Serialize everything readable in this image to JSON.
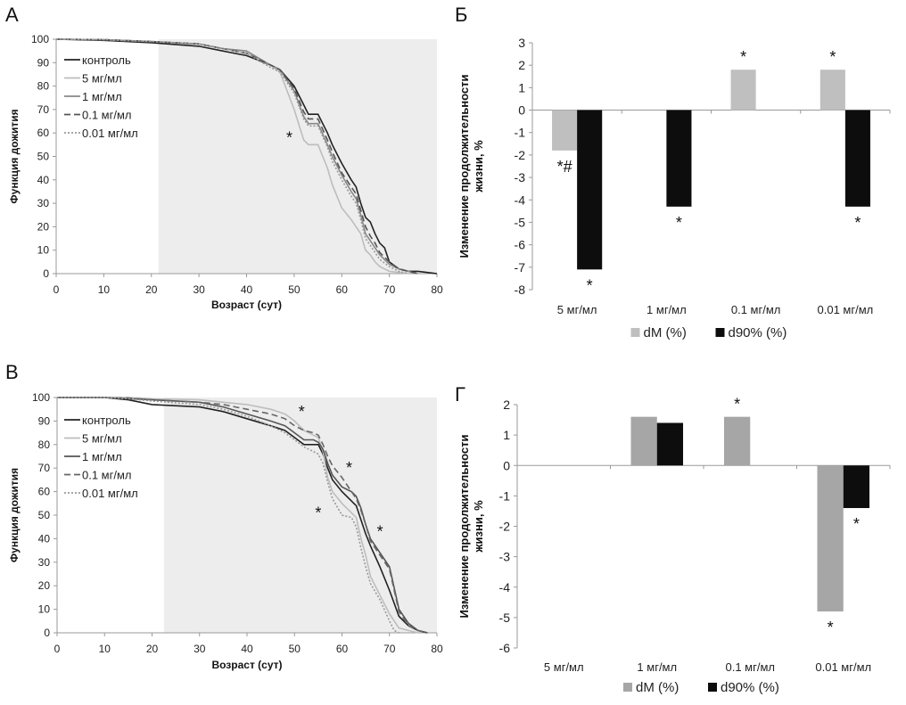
{
  "chart_data": [
    {
      "panel": "A",
      "type": "line",
      "xlabel": "Возраст (сут)",
      "ylabel": "Функция дожития",
      "xlim": [
        0,
        80
      ],
      "ylim": [
        0,
        100
      ],
      "xticks": [
        0,
        10,
        20,
        30,
        40,
        50,
        60,
        70,
        80
      ],
      "yticks": [
        0,
        10,
        20,
        30,
        40,
        50,
        60,
        70,
        80,
        90,
        100
      ],
      "shaded_from_x": 21.5,
      "legend_position": "top-left",
      "annotations": [
        {
          "text": "*",
          "x": 49,
          "y": 58,
          "color": "#aaaaaa"
        }
      ],
      "series": [
        {
          "name": "контроль",
          "style": "solid",
          "color": "#222222",
          "x": [
            0,
            10,
            20,
            30,
            35,
            40,
            45,
            47,
            50,
            52,
            53,
            55,
            57,
            58,
            60,
            62,
            63,
            64,
            65,
            66,
            67,
            68,
            69,
            70,
            72,
            74,
            76,
            78,
            80
          ],
          "y": [
            100,
            99.5,
            98.5,
            97,
            95,
            93,
            89,
            87,
            80,
            72,
            68,
            68,
            60,
            55,
            47,
            40,
            37,
            30,
            24,
            22,
            17,
            13,
            11,
            5,
            2,
            1,
            1,
            0.5,
            0
          ]
        },
        {
          "name": "5 мг/мл",
          "style": "solid",
          "color": "#bdbdbd",
          "x": [
            0,
            10,
            20,
            30,
            35,
            40,
            45,
            47,
            50,
            52,
            53,
            55,
            57,
            58,
            60,
            62,
            63,
            64,
            65,
            66,
            67,
            68,
            70,
            72,
            74
          ],
          "y": [
            100,
            99.8,
            99,
            98,
            96,
            94,
            89,
            86,
            70,
            57,
            55,
            55,
            45,
            38,
            28,
            23,
            20,
            17,
            10,
            8,
            5,
            3,
            1,
            0.5,
            0
          ]
        },
        {
          "name": "1 мг/мл",
          "style": "solid",
          "color": "#888888",
          "x": [
            0,
            10,
            20,
            30,
            35,
            40,
            45,
            47,
            50,
            52,
            53,
            55,
            57,
            58,
            60,
            62,
            63,
            64,
            65,
            66,
            67,
            68,
            70,
            72,
            74,
            76
          ],
          "y": [
            100,
            99.8,
            99,
            98,
            96,
            95,
            89,
            87,
            78,
            67,
            64,
            64,
            55,
            50,
            42,
            35,
            32,
            25,
            17,
            14,
            11,
            8,
            4,
            2,
            1,
            0
          ]
        },
        {
          "name": "0.1 мг/мл",
          "style": "dashed",
          "color": "#555555",
          "x": [
            0,
            10,
            20,
            30,
            35,
            40,
            45,
            47,
            50,
            52,
            53,
            55,
            57,
            58,
            60,
            62,
            63,
            64,
            65,
            66,
            67,
            68,
            70,
            72,
            74,
            76
          ],
          "y": [
            100,
            99.8,
            99,
            98,
            96,
            94,
            89,
            87,
            79,
            69,
            66,
            66,
            57,
            52,
            43,
            37,
            34,
            27,
            20,
            16,
            13,
            9,
            5,
            2,
            1,
            0
          ]
        },
        {
          "name": "0.01 мг/мл",
          "style": "dotted",
          "color": "#999999",
          "x": [
            0,
            10,
            20,
            30,
            35,
            40,
            45,
            47,
            50,
            52,
            53,
            55,
            57,
            58,
            60,
            62,
            63,
            64,
            65,
            66,
            67,
            68,
            70,
            72,
            74
          ],
          "y": [
            100,
            99.8,
            99,
            98,
            96,
            94,
            88,
            86,
            77,
            66,
            63,
            63,
            54,
            48,
            40,
            33,
            30,
            23,
            15,
            12,
            9,
            6,
            3,
            1,
            0
          ]
        }
      ]
    },
    {
      "panel": "Б",
      "type": "bar",
      "ylabel": "Изменение продолжительности жизни, %",
      "ylim": [
        -8,
        3
      ],
      "yticks": [
        -8,
        -7,
        -6,
        -5,
        -4,
        -3,
        -2,
        -1,
        0,
        1,
        2,
        3
      ],
      "categories": [
        "5 мг/мл",
        "1 мг/мл",
        "0.1 мг/мл",
        "0.01 мг/мл"
      ],
      "legend_position": "bottom",
      "series": [
        {
          "name": "dM (%)",
          "color": "#bfbfbf",
          "values": [
            -1.8,
            0,
            1.8,
            1.8
          ],
          "marks": [
            "*#",
            "",
            "*",
            "*"
          ]
        },
        {
          "name": "d90% (%)",
          "color": "#0d0d0d",
          "values": [
            -7.1,
            -4.3,
            0,
            -4.3
          ],
          "marks": [
            "*",
            "*",
            "",
            "*"
          ]
        }
      ]
    },
    {
      "panel": "В",
      "type": "line",
      "xlabel": "Возраст (сут)",
      "ylabel": "Функция дожития",
      "xlim": [
        0,
        80
      ],
      "ylim": [
        0,
        100
      ],
      "xticks": [
        0,
        10,
        20,
        30,
        40,
        50,
        60,
        70,
        80
      ],
      "yticks": [
        0,
        10,
        20,
        30,
        40,
        50,
        60,
        70,
        80,
        90,
        100
      ],
      "shaded_from_x": 22.5,
      "legend_position": "top-left",
      "annotations": [
        {
          "text": "*",
          "x": 51.5,
          "y": 94,
          "color": "#aaaaaa"
        },
        {
          "text": "*",
          "x": 61.5,
          "y": 70,
          "color": "#333333"
        },
        {
          "text": "*",
          "x": 55,
          "y": 51,
          "color": "#aaaaaa"
        },
        {
          "text": "*",
          "x": 68,
          "y": 43,
          "color": "#555555"
        }
      ],
      "series": [
        {
          "name": "контроль",
          "style": "solid",
          "color": "#222222",
          "x": [
            0,
            10,
            15,
            20,
            30,
            35,
            40,
            45,
            48,
            50,
            52,
            54,
            55,
            56,
            57,
            58,
            60,
            62,
            63,
            64,
            65,
            66,
            68,
            70,
            72,
            74,
            76,
            78
          ],
          "y": [
            100,
            100,
            99,
            97,
            96,
            94,
            91,
            88,
            86,
            83,
            80,
            80,
            80,
            76,
            70,
            65,
            60,
            56,
            54,
            48,
            42,
            37,
            28,
            18,
            7,
            3,
            1,
            0
          ]
        },
        {
          "name": "5 мг/мл",
          "style": "solid",
          "color": "#bdbdbd",
          "x": [
            0,
            10,
            15,
            20,
            30,
            35,
            40,
            45,
            48,
            50,
            52,
            54,
            55,
            56,
            57,
            58,
            60,
            62,
            63,
            64,
            65,
            66,
            68,
            70,
            72,
            74,
            76
          ],
          "y": [
            100,
            100,
            100,
            99.5,
            99,
            98,
            97,
            95,
            93,
            90,
            86,
            84,
            83,
            77,
            66,
            60,
            55,
            51,
            49,
            40,
            33,
            24,
            16,
            8,
            2,
            1,
            0
          ]
        },
        {
          "name": "1 мг/мл",
          "style": "solid",
          "color": "#555555",
          "x": [
            0,
            10,
            15,
            20,
            30,
            35,
            40,
            45,
            48,
            50,
            52,
            54,
            55,
            56,
            57,
            58,
            60,
            62,
            63,
            64,
            65,
            66,
            68,
            70,
            72,
            74,
            76,
            78
          ],
          "y": [
            100,
            100,
            99.5,
            99,
            98,
            96,
            93,
            90,
            88,
            85,
            82,
            82,
            81,
            78,
            72,
            67,
            62,
            60,
            58,
            53,
            46,
            40,
            34,
            28,
            10,
            4,
            1,
            0
          ]
        },
        {
          "name": "0.1 мг/мл",
          "style": "dashed",
          "color": "#666666",
          "x": [
            0,
            10,
            15,
            20,
            30,
            35,
            40,
            45,
            48,
            50,
            52,
            54,
            55,
            56,
            57,
            58,
            60,
            62,
            63,
            64,
            65,
            66,
            68,
            70,
            72,
            74,
            76,
            78
          ],
          "y": [
            100,
            100,
            99.8,
            99,
            98,
            97,
            95,
            93,
            91,
            88,
            86,
            85,
            84,
            80,
            75,
            71,
            66,
            60,
            57,
            52,
            46,
            39,
            33,
            27,
            9,
            3,
            1,
            0
          ]
        },
        {
          "name": "0.01 мг/мл",
          "style": "dotted",
          "color": "#999999",
          "x": [
            0,
            10,
            15,
            20,
            30,
            35,
            40,
            45,
            48,
            50,
            52,
            54,
            55,
            56,
            57,
            58,
            60,
            62,
            63,
            64,
            65,
            66,
            68,
            70,
            71,
            72
          ],
          "y": [
            100,
            100,
            99.5,
            98.5,
            97,
            95,
            92,
            88,
            85,
            82,
            79,
            77,
            76,
            72,
            64,
            57,
            50,
            49,
            45,
            36,
            28,
            21,
            14,
            5,
            1,
            0
          ]
        }
      ]
    },
    {
      "panel": "Г",
      "type": "bar",
      "ylabel": "Изменение продолжительности жизни, %",
      "ylim": [
        -6,
        2
      ],
      "yticks": [
        -6,
        -5,
        -4,
        -3,
        -2,
        -1,
        0,
        1,
        2
      ],
      "categories": [
        "5 мг/мл",
        "1 мг/мл",
        "0.1 мг/мл",
        "0.01 мг/мл"
      ],
      "legend_position": "bottom",
      "series": [
        {
          "name": "dM (%)",
          "color": "#a6a6a6",
          "values": [
            0,
            1.6,
            1.6,
            -4.8
          ],
          "marks": [
            "",
            "",
            "*",
            "*"
          ]
        },
        {
          "name": "d90% (%)",
          "color": "#0d0d0d",
          "values": [
            0,
            1.4,
            0,
            -1.4
          ],
          "marks": [
            "",
            "",
            "",
            "*"
          ]
        }
      ]
    }
  ],
  "panel_labels": {
    "A": "А",
    "B": "Б",
    "C": "В",
    "D": "Г"
  }
}
